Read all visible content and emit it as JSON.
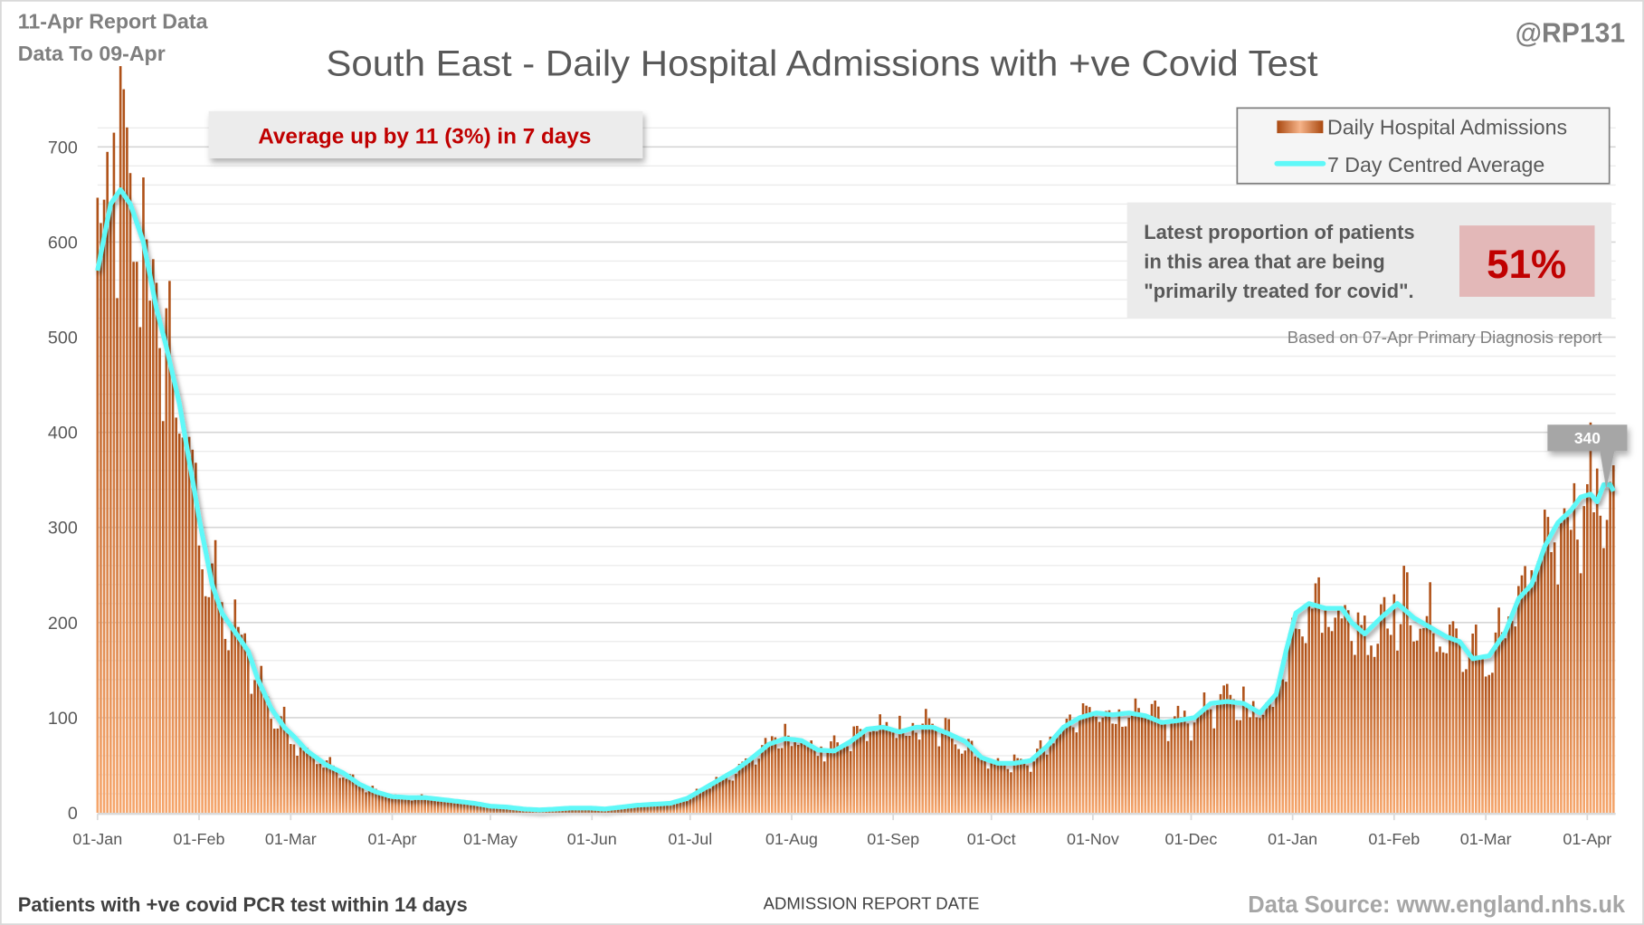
{
  "header": {
    "report_date": "11-Apr Report Data",
    "data_to": "Data To 09-Apr",
    "title": "South East - Daily Hospital Admissions with +ve Covid Test",
    "handle": "@RP131"
  },
  "trend_box": {
    "text": "Average up by 11 (3%) in 7 days"
  },
  "legend": {
    "bars_label": "Daily Hospital Admissions",
    "line_label": "7 Day Centred Average"
  },
  "proportion_box": {
    "line1": "Latest proportion of patients",
    "line2": "in this area that are being",
    "line3": "\"primarily treated for covid\".",
    "value": "51%",
    "note": "Based on 07-Apr Primary Diagnosis report"
  },
  "footer": {
    "left": "Patients with +ve covid PCR test within 14 days",
    "center": "ADMISSION REPORT DATE",
    "right": "Data Source: www.england.nhs.uk"
  },
  "colors": {
    "bar_top": "#ad4f16",
    "bar_bottom": "#f6a66c",
    "line": "#5ff8f8",
    "trend_text": "#c00000",
    "pct_bg": "#e3b8b8"
  },
  "chart_data": {
    "type": "bar",
    "title": "South East - Daily Hospital Admissions with +ve Covid Test",
    "xlabel": "ADMISSION REPORT DATE",
    "ylabel": "",
    "ylim": [
      0,
      720
    ],
    "yticks": [
      "0",
      "100",
      "200",
      "300",
      "400",
      "500",
      "600",
      "700"
    ],
    "start_date": "2021-01-01",
    "end_date": "2022-04-09",
    "grid": true,
    "legend_position": "top-right",
    "xticks": [
      {
        "day": 0,
        "label": "01-Jan"
      },
      {
        "day": 31,
        "label": "01-Feb"
      },
      {
        "day": 59,
        "label": "01-Mar"
      },
      {
        "day": 90,
        "label": "01-Apr"
      },
      {
        "day": 120,
        "label": "01-May"
      },
      {
        "day": 151,
        "label": "01-Jun"
      },
      {
        "day": 181,
        "label": "01-Jul"
      },
      {
        "day": 212,
        "label": "01-Aug"
      },
      {
        "day": 243,
        "label": "01-Sep"
      },
      {
        "day": 273,
        "label": "01-Oct"
      },
      {
        "day": 304,
        "label": "01-Nov"
      },
      {
        "day": 334,
        "label": "01-Dec"
      },
      {
        "day": 365,
        "label": "01-Jan"
      },
      {
        "day": 396,
        "label": "01-Feb"
      },
      {
        "day": 424,
        "label": "01-Mar"
      },
      {
        "day": 455,
        "label": "01-Apr"
      }
    ],
    "series": [
      {
        "name": "7 Day Centred Average",
        "type": "line",
        "points_day_value": [
          [
            0,
            570
          ],
          [
            4,
            640
          ],
          [
            7,
            655
          ],
          [
            10,
            640
          ],
          [
            14,
            600
          ],
          [
            18,
            530
          ],
          [
            21,
            490
          ],
          [
            25,
            430
          ],
          [
            28,
            370
          ],
          [
            31,
            310
          ],
          [
            35,
            240
          ],
          [
            38,
            210
          ],
          [
            42,
            190
          ],
          [
            46,
            170
          ],
          [
            49,
            140
          ],
          [
            53,
            110
          ],
          [
            57,
            90
          ],
          [
            60,
            80
          ],
          [
            64,
            65
          ],
          [
            70,
            50
          ],
          [
            75,
            42
          ],
          [
            80,
            30
          ],
          [
            85,
            22
          ],
          [
            90,
            17
          ],
          [
            95,
            16
          ],
          [
            100,
            16
          ],
          [
            105,
            14
          ],
          [
            110,
            12
          ],
          [
            115,
            10
          ],
          [
            120,
            7
          ],
          [
            125,
            6
          ],
          [
            130,
            4
          ],
          [
            135,
            3
          ],
          [
            140,
            4
          ],
          [
            145,
            5
          ],
          [
            150,
            5
          ],
          [
            155,
            4
          ],
          [
            160,
            6
          ],
          [
            165,
            8
          ],
          [
            170,
            9
          ],
          [
            175,
            10
          ],
          [
            180,
            15
          ],
          [
            185,
            25
          ],
          [
            190,
            35
          ],
          [
            195,
            45
          ],
          [
            200,
            58
          ],
          [
            205,
            72
          ],
          [
            210,
            78
          ],
          [
            215,
            76
          ],
          [
            220,
            66
          ],
          [
            225,
            65
          ],
          [
            230,
            75
          ],
          [
            235,
            88
          ],
          [
            240,
            90
          ],
          [
            245,
            85
          ],
          [
            250,
            90
          ],
          [
            255,
            90
          ],
          [
            260,
            83
          ],
          [
            265,
            75
          ],
          [
            270,
            58
          ],
          [
            275,
            52
          ],
          [
            280,
            52
          ],
          [
            285,
            55
          ],
          [
            290,
            70
          ],
          [
            295,
            90
          ],
          [
            300,
            100
          ],
          [
            305,
            105
          ],
          [
            310,
            103
          ],
          [
            315,
            105
          ],
          [
            320,
            102
          ],
          [
            325,
            95
          ],
          [
            330,
            97
          ],
          [
            335,
            100
          ],
          [
            340,
            115
          ],
          [
            345,
            117
          ],
          [
            350,
            115
          ],
          [
            355,
            105
          ],
          [
            360,
            125
          ],
          [
            363,
            170
          ],
          [
            366,
            210
          ],
          [
            370,
            220
          ],
          [
            375,
            215
          ],
          [
            380,
            215
          ],
          [
            383,
            200
          ],
          [
            387,
            188
          ],
          [
            392,
            205
          ],
          [
            397,
            220
          ],
          [
            402,
            205
          ],
          [
            407,
            195
          ],
          [
            412,
            185
          ],
          [
            416,
            180
          ],
          [
            420,
            162
          ],
          [
            425,
            165
          ],
          [
            430,
            190
          ],
          [
            434,
            225
          ],
          [
            438,
            240
          ],
          [
            442,
            280
          ],
          [
            446,
            305
          ],
          [
            450,
            318
          ],
          [
            453,
            332
          ],
          [
            456,
            335
          ],
          [
            458,
            327
          ],
          [
            460,
            345
          ],
          [
            462,
            345
          ],
          [
            463,
            338
          ]
        ]
      },
      {
        "name": "Daily Hospital Admissions",
        "type": "bar",
        "note_values": "daily bars vary around the 7 day average",
        "peak_early": 715
      }
    ],
    "annotations": [
      {
        "label": "340",
        "target": "latest 7 day average"
      }
    ]
  }
}
